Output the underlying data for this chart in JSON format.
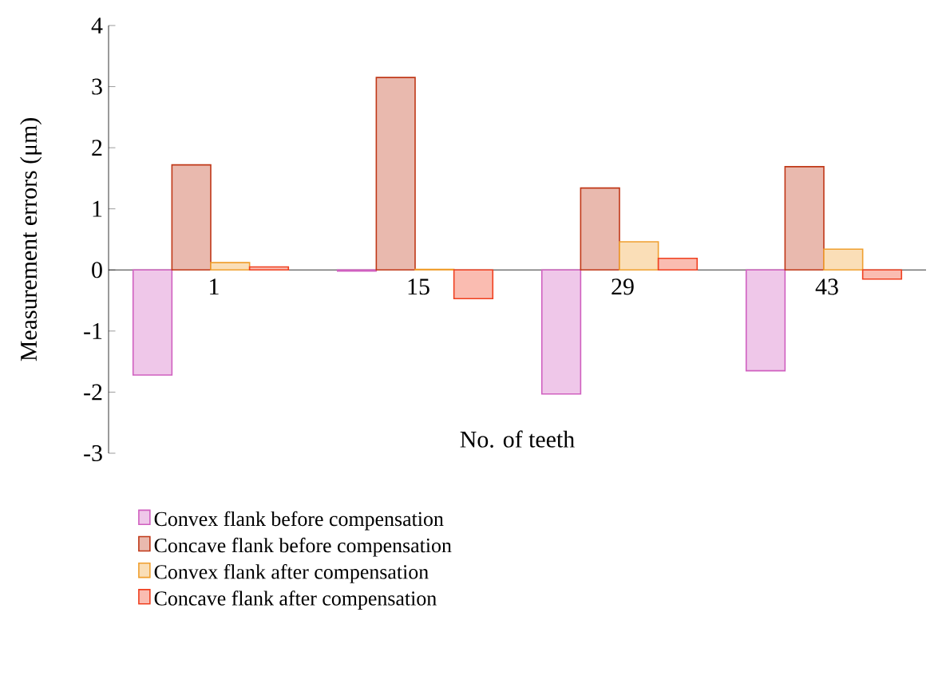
{
  "chart_data": {
    "type": "bar",
    "xlabel": "No. of teeth",
    "ylabel": "Measurement errors (μm)",
    "categories": [
      "1",
      "15",
      "29",
      "43"
    ],
    "series": [
      {
        "name": "Convex flank before compensation",
        "color": "#d060c0",
        "values": [
          -1.72,
          -0.02,
          -2.03,
          -1.65
        ]
      },
      {
        "name": "Concave flank before compensation",
        "color": "#c03818",
        "values": [
          1.72,
          3.15,
          1.34,
          1.69
        ]
      },
      {
        "name": "Convex flank after compensation",
        "color": "#f0a030",
        "values": [
          0.12,
          0.01,
          0.46,
          0.34
        ]
      },
      {
        "name": "Concave flank after compensation",
        "color": "#f04020",
        "values": [
          0.05,
          -0.47,
          0.19,
          -0.15
        ]
      }
    ],
    "ylim": [
      -3,
      4
    ],
    "yticks": [
      -3,
      -2,
      -1,
      0,
      1,
      2,
      3,
      4
    ],
    "legend": "bottom"
  }
}
